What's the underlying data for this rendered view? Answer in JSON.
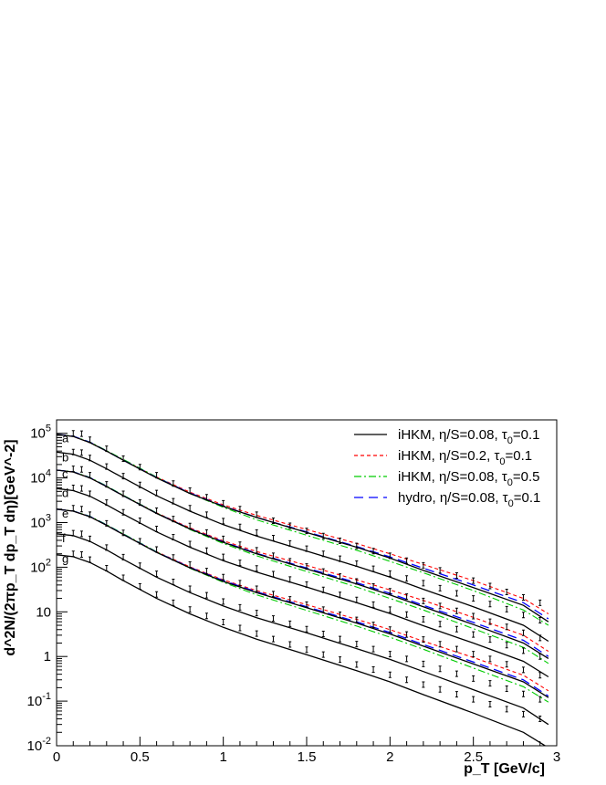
{
  "chart_data": {
    "type": "line",
    "title": "",
    "xlabel": "p_T [GeV/c]",
    "ylabel": "d^2N/(2πp_T dp_T dη)[GeV^-2]",
    "xlim": [
      0,
      3
    ],
    "ylim": [
      0.01,
      200000
    ],
    "yscale": "log",
    "grid": false,
    "legend_position": "top-right",
    "x_ticks": [
      "0",
      "0.5",
      "1",
      "1.5",
      "2",
      "2.5",
      "3"
    ],
    "y_ticks": [
      {
        "v": 100000,
        "base": "10",
        "exp": "5"
      },
      {
        "v": 10000,
        "base": "10",
        "exp": "4"
      },
      {
        "v": 1000,
        "base": "10",
        "exp": "3"
      },
      {
        "v": 100,
        "base": "10",
        "exp": "2"
      },
      {
        "v": 10,
        "base": "10",
        "exp": ""
      },
      {
        "v": 1,
        "base": "1",
        "exp": ""
      },
      {
        "v": 0.1,
        "base": "10",
        "exp": "-1"
      },
      {
        "v": 0.01,
        "base": "10",
        "exp": "-2"
      }
    ],
    "legend": [
      {
        "name": "iHKM, η/S=0.08, τ",
        "sub": "0",
        "tail": "=0.1",
        "color": "#000000",
        "dash": ""
      },
      {
        "name": "iHKM, η/S=0.2, τ",
        "sub": "0",
        "tail": "=0.1",
        "color": "#ff0000",
        "dash": "4,3"
      },
      {
        "name": "iHKM, η/S=0.08, τ",
        "sub": "0",
        "tail": "=0.5",
        "color": "#00cc00",
        "dash": "8,3,2,3"
      },
      {
        "name": "hydro, η/S=0.08, τ",
        "sub": "0",
        "tail": "=0.1",
        "color": "#0000ff",
        "dash": "10,6"
      }
    ],
    "x": [
      0.0,
      0.1,
      0.2,
      0.3,
      0.4,
      0.6,
      0.8,
      1.0,
      1.2,
      1.5,
      1.8,
      2.0,
      2.2,
      2.5,
      2.8,
      2.95
    ],
    "curves": [
      {
        "label": "a",
        "ihkm": [
          95000,
          85000,
          62000,
          40000,
          25000,
          10000,
          4500,
          2300,
          1300,
          600,
          280,
          160,
          85,
          35,
          14,
          6
        ],
        "eta02": [
          95000,
          85000,
          62000,
          40000,
          25000,
          10500,
          4800,
          2500,
          1450,
          700,
          340,
          200,
          115,
          50,
          20,
          9
        ],
        "tau05": [
          95000,
          86000,
          64000,
          41000,
          26000,
          10500,
          4500,
          2200,
          1150,
          520,
          240,
          135,
          75,
          30,
          11,
          5
        ],
        "hydro": [
          95000,
          86000,
          63000,
          40000,
          25000,
          10200,
          4600,
          2350,
          1300,
          620,
          290,
          170,
          95,
          40,
          16,
          7
        ],
        "data": [
          [
            0.1,
            100000
          ],
          [
            0.15,
            98000
          ],
          [
            0.2,
            72000
          ],
          [
            0.3,
            45000
          ],
          [
            0.4,
            27000
          ],
          [
            0.5,
            17500
          ],
          [
            0.6,
            11500
          ],
          [
            0.7,
            7500
          ],
          [
            0.8,
            5200
          ],
          [
            0.9,
            3700
          ],
          [
            1.0,
            2700
          ],
          [
            1.1,
            2000
          ],
          [
            1.2,
            1500
          ],
          [
            1.3,
            1100
          ],
          [
            1.4,
            850
          ],
          [
            1.5,
            650
          ],
          [
            1.6,
            500
          ],
          [
            1.7,
            390
          ],
          [
            1.8,
            300
          ],
          [
            1.9,
            230
          ],
          [
            2.0,
            180
          ],
          [
            2.1,
            140
          ],
          [
            2.2,
            110
          ],
          [
            2.3,
            85
          ],
          [
            2.4,
            65
          ],
          [
            2.5,
            50
          ],
          [
            2.6,
            38
          ],
          [
            2.7,
            28
          ],
          [
            2.8,
            21
          ],
          [
            2.9,
            16
          ]
        ]
      },
      {
        "label": "b",
        "ihkm": [
          38000,
          34000,
          25000,
          16000,
          10000,
          4000,
          1800,
          900,
          500,
          230,
          105,
          60,
          32,
          13,
          5,
          2.2
        ],
        "data": [
          [
            0.1,
            38000
          ],
          [
            0.15,
            37000
          ],
          [
            0.2,
            28000
          ],
          [
            0.3,
            18000
          ],
          [
            0.4,
            11000
          ],
          [
            0.5,
            7000
          ],
          [
            0.6,
            4600
          ],
          [
            0.7,
            3000
          ],
          [
            0.8,
            2100
          ],
          [
            0.9,
            1500
          ],
          [
            1.0,
            1080
          ],
          [
            1.1,
            800
          ],
          [
            1.2,
            600
          ],
          [
            1.3,
            450
          ],
          [
            1.4,
            340
          ],
          [
            1.5,
            260
          ],
          [
            1.6,
            200
          ],
          [
            1.7,
            155
          ],
          [
            1.8,
            120
          ],
          [
            1.9,
            92
          ],
          [
            2.0,
            72
          ],
          [
            2.1,
            56
          ],
          [
            2.2,
            44
          ],
          [
            2.3,
            34
          ],
          [
            2.4,
            26
          ],
          [
            2.5,
            20
          ],
          [
            2.6,
            15
          ],
          [
            2.7,
            11.5
          ],
          [
            2.8,
            8.5
          ],
          [
            2.9,
            6.5
          ]
        ]
      },
      {
        "label": "c",
        "ihkm": [
          15000,
          13600,
          10000,
          6400,
          4000,
          1600,
          720,
          360,
          200,
          92,
          42,
          24,
          13,
          5.2,
          2,
          0.9
        ],
        "eta02": [
          15000,
          13600,
          10000,
          6400,
          4000,
          1650,
          760,
          390,
          225,
          110,
          52,
          31,
          18,
          7.5,
          3,
          1.3
        ],
        "tau05": [
          15000,
          13800,
          10300,
          6600,
          4100,
          1650,
          700,
          340,
          180,
          80,
          36,
          20,
          11,
          4.2,
          1.6,
          0.7
        ],
        "hydro": [
          15000,
          13700,
          10100,
          6450,
          4000,
          1620,
          730,
          370,
          205,
          96,
          45,
          26,
          14,
          5.8,
          2.3,
          1.0
        ],
        "data": [
          [
            0.1,
            16000
          ],
          [
            0.15,
            15500
          ],
          [
            0.2,
            11500
          ],
          [
            0.3,
            7200
          ],
          [
            0.4,
            4400
          ],
          [
            0.5,
            2800
          ],
          [
            0.6,
            1850
          ],
          [
            0.7,
            1200
          ],
          [
            0.8,
            840
          ],
          [
            0.9,
            600
          ],
          [
            1.0,
            430
          ],
          [
            1.1,
            320
          ],
          [
            1.2,
            240
          ],
          [
            1.3,
            180
          ],
          [
            1.4,
            136
          ],
          [
            1.5,
            104
          ],
          [
            1.6,
            80
          ],
          [
            1.7,
            62
          ],
          [
            1.8,
            48
          ],
          [
            1.9,
            37
          ],
          [
            2.0,
            29
          ],
          [
            2.1,
            22
          ],
          [
            2.2,
            17.5
          ],
          [
            2.3,
            13.5
          ],
          [
            2.4,
            10.5
          ],
          [
            2.5,
            8
          ],
          [
            2.6,
            6
          ],
          [
            2.7,
            4.6
          ],
          [
            2.8,
            3.4
          ],
          [
            2.9,
            2.6
          ]
        ]
      },
      {
        "label": "d",
        "ihkm": [
          5800,
          5200,
          3900,
          2500,
          1550,
          620,
          280,
          140,
          78,
          36,
          16,
          9.2,
          4.9,
          2,
          0.78,
          0.35
        ],
        "data": [
          [
            0.1,
            6000
          ],
          [
            0.15,
            5800
          ],
          [
            0.2,
            4400
          ],
          [
            0.3,
            2800
          ],
          [
            0.4,
            1700
          ],
          [
            0.5,
            1100
          ],
          [
            0.6,
            720
          ],
          [
            0.7,
            470
          ],
          [
            0.8,
            330
          ],
          [
            0.9,
            235
          ],
          [
            1.0,
            170
          ],
          [
            1.1,
            125
          ],
          [
            1.2,
            94
          ],
          [
            1.3,
            70
          ],
          [
            1.4,
            53
          ],
          [
            1.5,
            41
          ],
          [
            1.6,
            31
          ],
          [
            1.7,
            24
          ],
          [
            1.8,
            18.5
          ],
          [
            1.9,
            14.5
          ],
          [
            2.0,
            11.2
          ],
          [
            2.1,
            8.7
          ],
          [
            2.2,
            6.8
          ],
          [
            2.3,
            5.3
          ],
          [
            2.4,
            4.1
          ],
          [
            2.5,
            3.1
          ],
          [
            2.6,
            2.4
          ],
          [
            2.7,
            1.8
          ],
          [
            2.8,
            1.35
          ],
          [
            2.9,
            1.0
          ]
        ]
      },
      {
        "label": "e",
        "ihkm": [
          2000,
          1800,
          1350,
          870,
          540,
          215,
          97,
          48,
          27,
          12.4,
          5.6,
          3.2,
          1.7,
          0.68,
          0.27,
          0.12
        ],
        "eta02": [
          2000,
          1800,
          1350,
          870,
          540,
          222,
          102,
          52,
          30,
          14.5,
          6.8,
          4,
          2.2,
          0.95,
          0.38,
          0.17
        ],
        "tau05": [
          2000,
          1820,
          1390,
          900,
          560,
          222,
          95,
          46,
          24,
          10.8,
          4.8,
          2.7,
          1.45,
          0.55,
          0.21,
          0.095
        ],
        "hydro": [
          2000,
          1810,
          1370,
          880,
          545,
          218,
          99,
          50,
          28,
          13,
          6,
          3.45,
          1.85,
          0.75,
          0.3,
          0.13
        ],
        "data": [
          [
            0.1,
            2100
          ],
          [
            0.15,
            2000
          ],
          [
            0.2,
            1500
          ],
          [
            0.3,
            960
          ],
          [
            0.4,
            590
          ],
          [
            0.5,
            380
          ],
          [
            0.6,
            250
          ],
          [
            0.7,
            165
          ],
          [
            0.8,
            115
          ],
          [
            0.9,
            82
          ],
          [
            1.0,
            60
          ],
          [
            1.1,
            44
          ],
          [
            1.2,
            33
          ],
          [
            1.3,
            25
          ],
          [
            1.4,
            19
          ],
          [
            1.5,
            14.5
          ],
          [
            1.6,
            11.2
          ],
          [
            1.7,
            8.6
          ],
          [
            1.8,
            6.6
          ],
          [
            1.9,
            5.1
          ],
          [
            2.0,
            4.0
          ],
          [
            2.1,
            3.1
          ],
          [
            2.2,
            2.4
          ],
          [
            2.3,
            1.88
          ],
          [
            2.4,
            1.46
          ],
          [
            2.5,
            1.13
          ],
          [
            2.6,
            0.88
          ],
          [
            2.7,
            0.67
          ],
          [
            2.8,
            0.5
          ],
          [
            2.9,
            0.38
          ]
        ]
      },
      {
        "label": "f",
        "ihkm": [
          560,
          510,
          380,
          245,
          150,
          60,
          27,
          13.5,
          7.4,
          3.4,
          1.5,
          0.86,
          0.46,
          0.18,
          0.07,
          0.03
        ],
        "data": [
          [
            0.1,
            580
          ],
          [
            0.15,
            560
          ],
          [
            0.2,
            430
          ],
          [
            0.3,
            275
          ],
          [
            0.4,
            168
          ],
          [
            0.5,
            108
          ],
          [
            0.6,
            71
          ],
          [
            0.7,
            47
          ],
          [
            0.8,
            33
          ],
          [
            0.9,
            23.5
          ],
          [
            1.0,
            17
          ],
          [
            1.1,
            12.6
          ],
          [
            1.2,
            9.4
          ],
          [
            1.3,
            7.1
          ],
          [
            1.4,
            5.4
          ],
          [
            1.5,
            4.1
          ],
          [
            1.6,
            3.2
          ],
          [
            1.7,
            2.45
          ],
          [
            1.8,
            1.9
          ],
          [
            1.9,
            1.46
          ],
          [
            2.0,
            1.13
          ],
          [
            2.1,
            0.88
          ],
          [
            2.2,
            0.68
          ],
          [
            2.3,
            0.53
          ],
          [
            2.4,
            0.41
          ],
          [
            2.5,
            0.32
          ],
          [
            2.6,
            0.25
          ],
          [
            2.7,
            0.19
          ],
          [
            2.8,
            0.145
          ],
          [
            2.9,
            0.11
          ]
        ]
      },
      {
        "label": "g",
        "ihkm": [
          190,
          172,
          128,
          82,
          50,
          20,
          9,
          4.5,
          2.45,
          1.1,
          0.48,
          0.27,
          0.14,
          0.054,
          0.02,
          0.009
        ],
        "data": [
          [
            0.1,
            200
          ],
          [
            0.15,
            192
          ],
          [
            0.2,
            148
          ],
          [
            0.3,
            95
          ],
          [
            0.4,
            58
          ],
          [
            0.5,
            37
          ],
          [
            0.6,
            24.5
          ],
          [
            0.7,
            16
          ],
          [
            0.8,
            11.3
          ],
          [
            0.9,
            8.1
          ],
          [
            1.0,
            5.9
          ],
          [
            1.1,
            4.35
          ],
          [
            1.2,
            3.25
          ],
          [
            1.3,
            2.45
          ],
          [
            1.4,
            1.86
          ],
          [
            1.5,
            1.42
          ],
          [
            1.6,
            1.1
          ],
          [
            1.7,
            0.85
          ],
          [
            1.8,
            0.66
          ],
          [
            1.9,
            0.51
          ],
          [
            2.0,
            0.39
          ],
          [
            2.1,
            0.3
          ],
          [
            2.2,
            0.235
          ],
          [
            2.3,
            0.183
          ],
          [
            2.4,
            0.142
          ],
          [
            2.5,
            0.11
          ],
          [
            2.6,
            0.085
          ],
          [
            2.7,
            0.066
          ],
          [
            2.8,
            0.051
          ],
          [
            2.9,
            0.04
          ]
        ]
      }
    ]
  }
}
